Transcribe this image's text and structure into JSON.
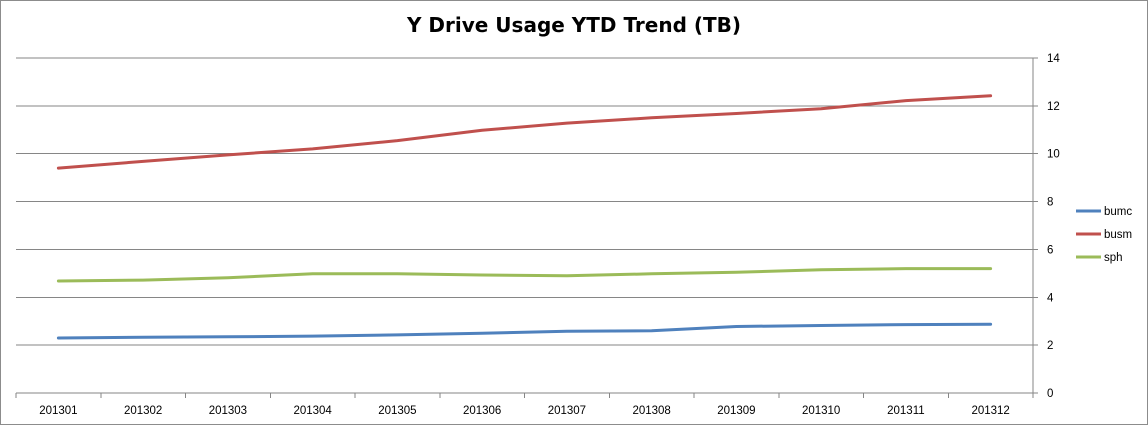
{
  "chart_data": {
    "type": "line",
    "title": "Y Drive Usage YTD Trend (TB)",
    "xlabel": "",
    "ylabel": "",
    "categories": [
      "201301",
      "201302",
      "201303",
      "201304",
      "201305",
      "201306",
      "201307",
      "201308",
      "201309",
      "201310",
      "201311",
      "201312"
    ],
    "ylim": [
      0,
      14
    ],
    "yticks": [
      0,
      2,
      4,
      6,
      8,
      10,
      12,
      14
    ],
    "y_axis_side": "right",
    "grid": true,
    "legend_position": "right",
    "series": [
      {
        "name": "bumc",
        "color": "#4f81bd",
        "values": [
          2.3,
          2.33,
          2.35,
          2.38,
          2.43,
          2.5,
          2.58,
          2.6,
          2.78,
          2.82,
          2.86,
          2.87
        ]
      },
      {
        "name": "busm",
        "color": "#c0504d",
        "values": [
          9.4,
          9.68,
          9.95,
          10.2,
          10.55,
          10.98,
          11.28,
          11.5,
          11.68,
          11.88,
          12.22,
          12.42
        ]
      },
      {
        "name": "sph",
        "color": "#9bbb59",
        "values": [
          4.68,
          4.72,
          4.82,
          4.98,
          4.98,
          4.93,
          4.9,
          4.98,
          5.05,
          5.15,
          5.2,
          5.2
        ]
      }
    ]
  }
}
